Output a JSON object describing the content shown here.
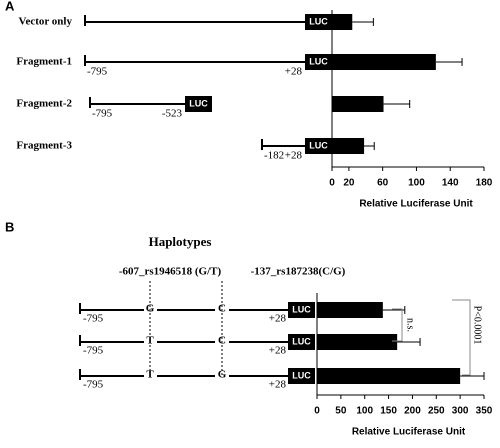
{
  "chart_data": [
    {
      "type": "bar",
      "orientation": "horizontal",
      "panel": "A",
      "color": "#000000",
      "categories": [
        "Vector only",
        "Fragment-1",
        "Fragment-2",
        "Fragment-3"
      ],
      "values": [
        24,
        123,
        61,
        38
      ],
      "errors": [
        25,
        31,
        31,
        12
      ],
      "xlim": [
        0,
        180
      ],
      "xticks": [
        0,
        20,
        60,
        100,
        140,
        180
      ],
      "xlabel": "Relative Luciferase Unit",
      "constructs": [
        {
          "box": "LUC"
        },
        {
          "start": "-795",
          "end": "+28",
          "box": "LUC"
        },
        {
          "start": "-795",
          "end": "-523",
          "box": "LUC"
        },
        {
          "start": "-182",
          "end": "+28",
          "box": "LUC"
        }
      ]
    },
    {
      "type": "bar",
      "orientation": "horizontal",
      "panel": "B",
      "color": "#000000",
      "subtitle": "Haplotypes",
      "snp_labels": [
        "-607_rs1946518 (G/T)",
        "-137_rs187238(C/G)"
      ],
      "values": [
        138,
        168,
        300
      ],
      "errors": [
        46,
        48,
        50
      ],
      "xlim": [
        0,
        350
      ],
      "xticks": [
        0,
        50,
        100,
        150,
        200,
        250,
        300,
        350
      ],
      "xlabel": "Relative Luciferase Unit",
      "constructs": [
        {
          "start": "-795",
          "snp1": "G",
          "snp2": "C",
          "end": "+28",
          "box": "LUC"
        },
        {
          "start": "-795",
          "snp1": "T",
          "snp2": "C",
          "end": "+28",
          "box": "LUC"
        },
        {
          "start": "-795",
          "snp1": "T",
          "snp2": "G",
          "end": "+28",
          "box": "LUC"
        }
      ],
      "annotations": [
        "n.s.",
        "P<0.0001"
      ]
    }
  ]
}
